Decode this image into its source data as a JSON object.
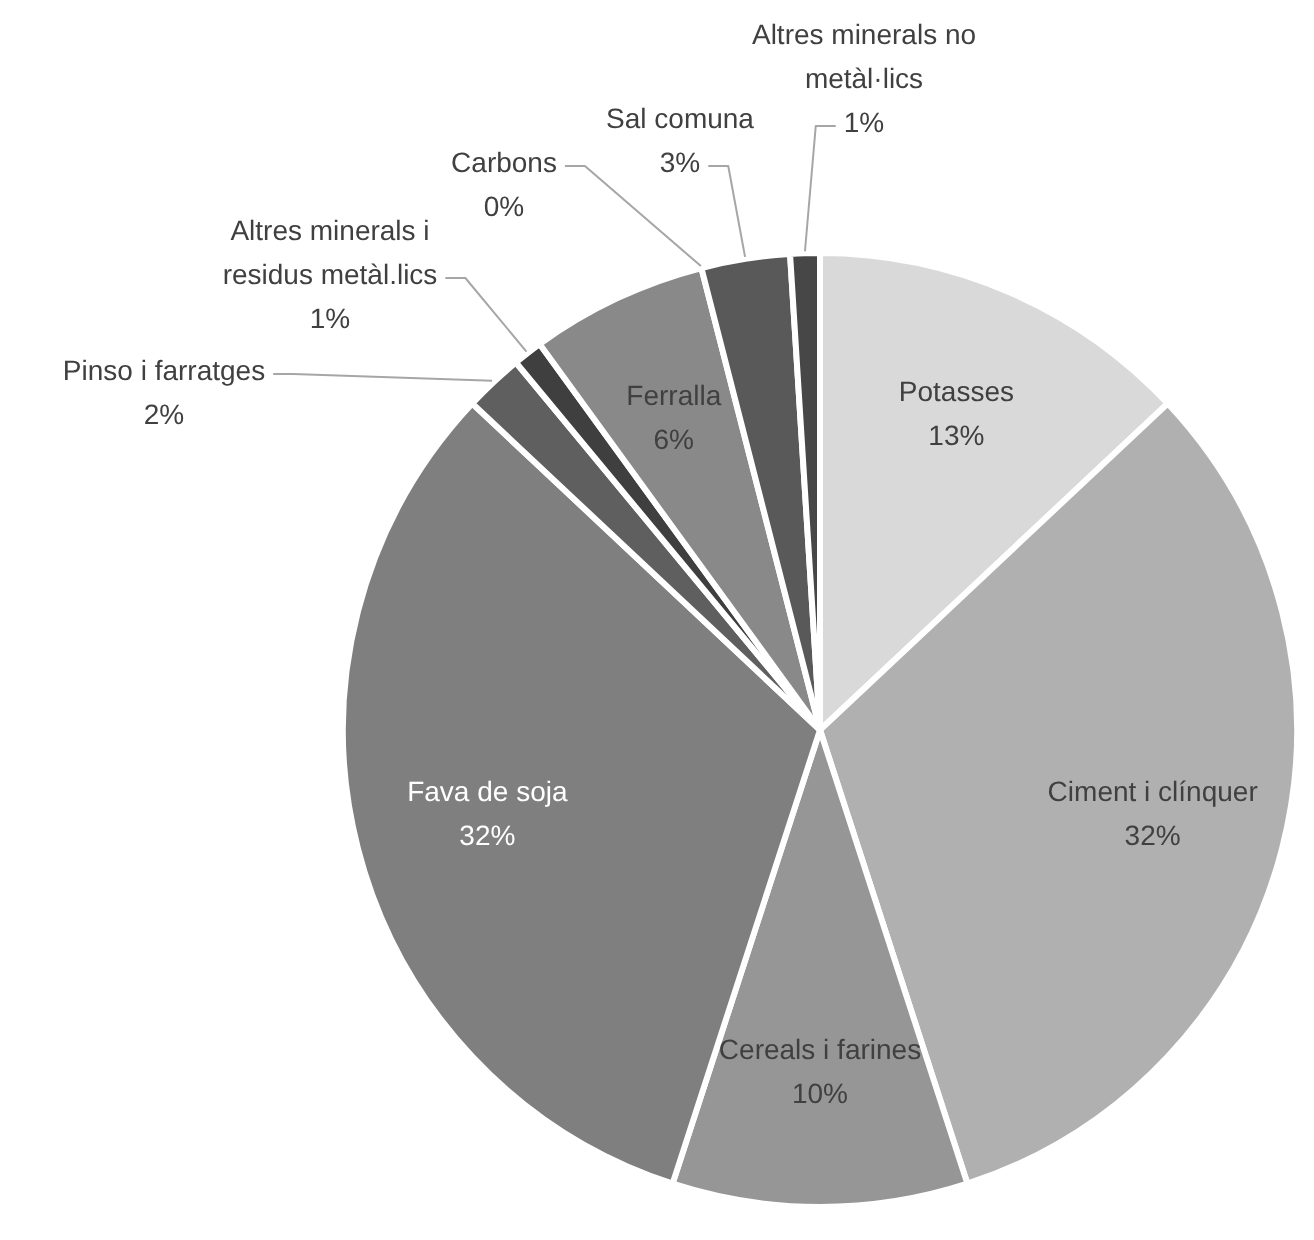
{
  "chart_data": {
    "type": "pie",
    "categories": [
      "Potasses",
      "Ciment i clínquer",
      "Cereals i farines",
      "Fava de soja",
      "Pinso i farratges",
      "Altres minerals i residus metàl.lics",
      "Ferralla",
      "Carbons",
      "Sal comuna",
      "Altres minerals no metàl·lics"
    ],
    "values": [
      13,
      32,
      10,
      32,
      2,
      1,
      6,
      0,
      3,
      1
    ],
    "colors": [
      "#d9d9d9",
      "#b0b0b0",
      "#969696",
      "#7f7f7f",
      "#5f5f5f",
      "#3f3f3f",
      "#898989",
      "#a5a5a5",
      "#595959",
      "#474747"
    ],
    "value_labels": [
      "13%",
      "32%",
      "10%",
      "32%",
      "2%",
      "1%",
      "6%",
      "0%",
      "3%",
      "1%"
    ]
  }
}
